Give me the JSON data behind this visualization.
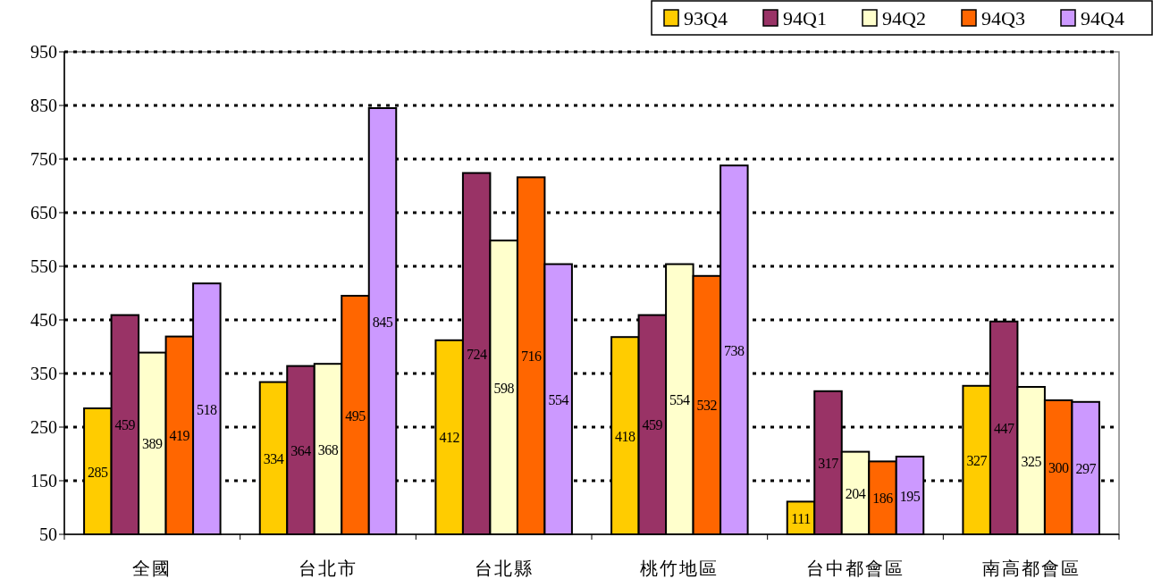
{
  "chart_data": {
    "type": "bar",
    "categories": [
      "全國",
      "台北市",
      "台北縣",
      "桃竹地區",
      "台中都會區",
      "南高都會區"
    ],
    "series": [
      {
        "name": "93Q4",
        "color": "#ffcc00",
        "values": [
          285,
          334,
          412,
          418,
          111,
          327
        ]
      },
      {
        "name": "94Q1",
        "color": "#993366",
        "values": [
          459,
          364,
          724,
          459,
          317,
          447
        ]
      },
      {
        "name": "94Q2",
        "color": "#ffffcc",
        "values": [
          389,
          368,
          598,
          554,
          204,
          325
        ]
      },
      {
        "name": "94Q3",
        "color": "#ff6600",
        "values": [
          419,
          495,
          716,
          532,
          186,
          300
        ]
      },
      {
        "name": "94Q4",
        "color": "#cc99ff",
        "values": [
          518,
          845,
          554,
          738,
          195,
          297
        ]
      }
    ],
    "ylim": [
      50,
      950
    ],
    "yticks": [
      50,
      150,
      250,
      350,
      450,
      550,
      650,
      750,
      850,
      950
    ],
    "grid": "y",
    "legend": "top right",
    "data_labels": true
  }
}
